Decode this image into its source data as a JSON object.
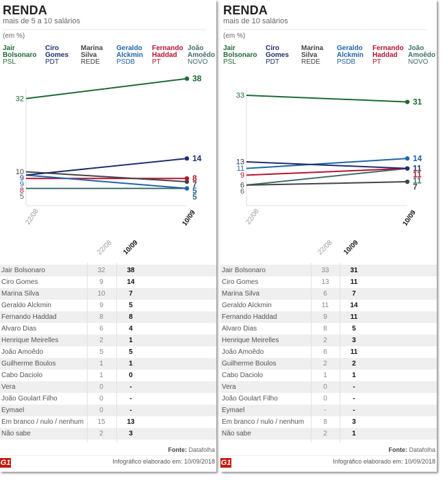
{
  "chart_data": [
    {
      "type": "line",
      "title": "RENDA",
      "subtitle": "mais de 5 a 10 salários",
      "unit_label": "(em %)",
      "x": [
        "22/08",
        "10/09"
      ],
      "ylabel": "",
      "xlabel": "",
      "ylim": [
        0,
        40
      ],
      "grid": false,
      "legend_position": "top",
      "series": [
        {
          "name": "Jair Bolsonaro",
          "party": "PSL",
          "color": "#1e6b34",
          "values": [
            32,
            38
          ]
        },
        {
          "name": "Ciro Gomes",
          "party": "PDT",
          "color": "#1e2f6b",
          "values": [
            9,
            14
          ]
        },
        {
          "name": "Marina Silva",
          "party": "REDE",
          "color": "#444444",
          "values": [
            10,
            7
          ]
        },
        {
          "name": "Geraldo Alckmin",
          "party": "PSDB",
          "color": "#1f64a8",
          "values": [
            9,
            5
          ]
        },
        {
          "name": "Fernando Haddad",
          "party": "PT",
          "color": "#b8122e",
          "values": [
            8,
            8
          ]
        },
        {
          "name": "João Amoêdo",
          "party": "NOVO",
          "color": "#3e6e6a",
          "values": [
            5,
            5
          ]
        }
      ],
      "table": {
        "columns": [
          "22/08",
          "10/09"
        ],
        "rows": [
          {
            "name": "Jair Bolsonaro",
            "v1": "32",
            "v2": "38"
          },
          {
            "name": "Ciro Gomes",
            "v1": "9",
            "v2": "14"
          },
          {
            "name": "Marina Silva",
            "v1": "10",
            "v2": "7"
          },
          {
            "name": "Geraldo Alckmin",
            "v1": "9",
            "v2": "5"
          },
          {
            "name": "Fernando Haddad",
            "v1": "8",
            "v2": "8"
          },
          {
            "name": "Alvaro Dias",
            "v1": "6",
            "v2": "4"
          },
          {
            "name": "Henrique Meirelles",
            "v1": "2",
            "v2": "1"
          },
          {
            "name": "João Amoêdo",
            "v1": "5",
            "v2": "5"
          },
          {
            "name": "Guilherme Boulos",
            "v1": "1",
            "v2": "1"
          },
          {
            "name": "Cabo Daciolo",
            "v1": "1",
            "v2": "0"
          },
          {
            "name": "Vera",
            "v1": "0",
            "v2": "-"
          },
          {
            "name": "João Goulart Filho",
            "v1": "0",
            "v2": "-"
          },
          {
            "name": "Eymael",
            "v1": "0",
            "v2": "-"
          },
          {
            "name": "Em branco / nulo / nenhum",
            "v1": "15",
            "v2": "13"
          },
          {
            "name": "Não sabe",
            "v1": "2",
            "v2": "3"
          }
        ]
      },
      "source_label": "Fonte:",
      "source": "Datafolha",
      "credit": "Infográfico elaborado em: 10/09/2018"
    },
    {
      "type": "line",
      "title": "RENDA",
      "subtitle": "mais de 10 salários",
      "unit_label": "(em %)",
      "x": [
        "22/08",
        "10/09"
      ],
      "ylabel": "",
      "xlabel": "",
      "ylim": [
        0,
        40
      ],
      "grid": false,
      "legend_position": "top",
      "series": [
        {
          "name": "Jair Bolsonaro",
          "party": "PSL",
          "color": "#1e6b34",
          "values": [
            33,
            31
          ]
        },
        {
          "name": "Ciro Gomes",
          "party": "PDT",
          "color": "#1e2f6b",
          "values": [
            13,
            11
          ]
        },
        {
          "name": "Marina Silva",
          "party": "REDE",
          "color": "#444444",
          "values": [
            6,
            7
          ]
        },
        {
          "name": "Geraldo Alckmin",
          "party": "PSDB",
          "color": "#1f64a8",
          "values": [
            11,
            14
          ]
        },
        {
          "name": "Fernando Haddad",
          "party": "PT",
          "color": "#b8122e",
          "values": [
            9,
            11
          ]
        },
        {
          "name": "João Amoêdo",
          "party": "NOVO",
          "color": "#3e6e6a",
          "values": [
            6,
            11
          ]
        }
      ],
      "table": {
        "columns": [
          "22/08",
          "10/09"
        ],
        "rows": [
          {
            "name": "Jair Bolsonaro",
            "v1": "33",
            "v2": "31"
          },
          {
            "name": "Ciro Gomes",
            "v1": "13",
            "v2": "11"
          },
          {
            "name": "Marina Silva",
            "v1": "6",
            "v2": "7"
          },
          {
            "name": "Geraldo Alckmin",
            "v1": "11",
            "v2": "14"
          },
          {
            "name": "Fernando Haddad",
            "v1": "9",
            "v2": "11"
          },
          {
            "name": "Alvaro Dias",
            "v1": "8",
            "v2": "5"
          },
          {
            "name": "Henrique Meirelles",
            "v1": "2",
            "v2": "3"
          },
          {
            "name": "João Amoêdo",
            "v1": "6",
            "v2": "11"
          },
          {
            "name": "Guilherme Boulos",
            "v1": "2",
            "v2": "2"
          },
          {
            "name": "Cabo Daciolo",
            "v1": "1",
            "v2": "1"
          },
          {
            "name": "Vera",
            "v1": "0",
            "v2": "-"
          },
          {
            "name": "João Goulart Filho",
            "v1": "0",
            "v2": "-"
          },
          {
            "name": "Eymael",
            "v1": "-",
            "v2": "-"
          },
          {
            "name": "Em branco / nulo / nenhum",
            "v1": "8",
            "v2": "3"
          },
          {
            "name": "Não sabe",
            "v1": "2",
            "v2": "1"
          }
        ]
      },
      "source_label": "Fonte:",
      "source": "Datafolha",
      "credit": "Infográfico elaborado em: 10/09/2018"
    }
  ],
  "branding": {
    "logo": "G1"
  }
}
